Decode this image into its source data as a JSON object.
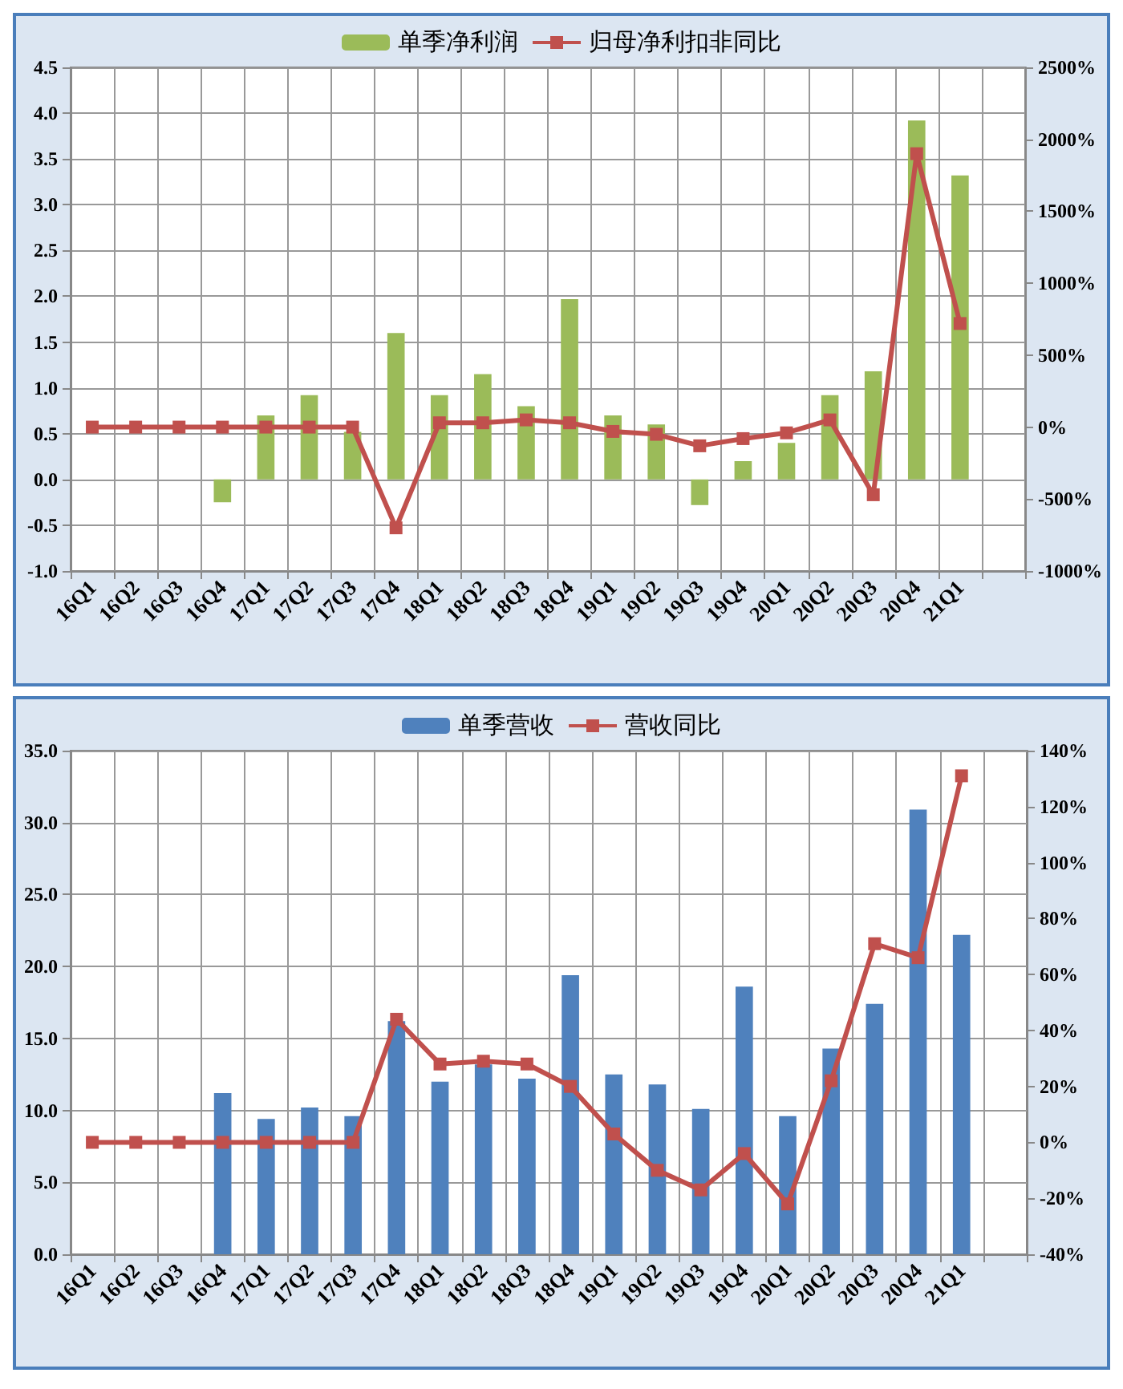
{
  "chart_data": [
    {
      "type": "bar",
      "categories": [
        "16Q1",
        "16Q2",
        "16Q3",
        "16Q4",
        "17Q1",
        "17Q2",
        "17Q3",
        "17Q4",
        "18Q1",
        "18Q2",
        "18Q3",
        "18Q4",
        "19Q1",
        "19Q2",
        "19Q3",
        "19Q4",
        "20Q1",
        "20Q2",
        "20Q3",
        "20Q4",
        "21Q1",
        null
      ],
      "series": [
        {
          "name": "单季净利润",
          "color": "#9bbb59",
          "values": [
            null,
            null,
            null,
            -0.25,
            0.7,
            0.92,
            0.52,
            1.6,
            0.92,
            1.15,
            0.8,
            1.97,
            0.7,
            0.6,
            -0.28,
            0.2,
            0.4,
            0.92,
            1.18,
            3.92,
            3.32,
            null
          ]
        },
        {
          "name": "归母净利扣非同比",
          "type": "line",
          "axis": "y2",
          "color": "#c0504d",
          "values": [
            0,
            0,
            0,
            0,
            0,
            0,
            0,
            -700,
            30,
            30,
            50,
            30,
            -30,
            -50,
            -130,
            -80,
            -40,
            50,
            -470,
            1900,
            720,
            null
          ]
        }
      ],
      "ylim": [
        -1,
        4.5
      ],
      "yticks": [
        {
          "value": -1,
          "label": "-1.0"
        },
        {
          "value": -0.5,
          "label": "-0.5"
        },
        {
          "value": 0,
          "label": "0.0"
        },
        {
          "value": 0.5,
          "label": "0.5"
        },
        {
          "value": 1,
          "label": "1.0"
        },
        {
          "value": 1.5,
          "label": "1.5"
        },
        {
          "value": 2,
          "label": "2.0"
        },
        {
          "value": 2.5,
          "label": "2.5"
        },
        {
          "value": 3,
          "label": "3.0"
        },
        {
          "value": 3.5,
          "label": "3.5"
        },
        {
          "value": 4,
          "label": "4.0"
        },
        {
          "value": 4.5,
          "label": "4.5"
        }
      ],
      "y2lim": [
        -1000,
        2500
      ],
      "y2ticks": [
        {
          "value": -1000,
          "label": "-1000%"
        },
        {
          "value": -500,
          "label": "-500%"
        },
        {
          "value": 0,
          "label": "0%"
        },
        {
          "value": 500,
          "label": "500%"
        },
        {
          "value": 1000,
          "label": "1000%"
        },
        {
          "value": 1500,
          "label": "1500%"
        },
        {
          "value": 2000,
          "label": "2000%"
        },
        {
          "value": 2500,
          "label": "2500%"
        }
      ],
      "grid": true,
      "legend": "top",
      "marker": "square"
    },
    {
      "type": "bar",
      "categories": [
        "16Q1",
        "16Q2",
        "16Q3",
        "16Q4",
        "17Q1",
        "17Q2",
        "17Q3",
        "17Q4",
        "18Q1",
        "18Q2",
        "18Q3",
        "18Q4",
        "19Q1",
        "19Q2",
        "19Q3",
        "19Q4",
        "20Q1",
        "20Q2",
        "20Q3",
        "20Q4",
        "21Q1",
        null
      ],
      "series": [
        {
          "name": "单季营收",
          "color": "#4f81bd",
          "values": [
            null,
            null,
            null,
            11.2,
            9.4,
            10.2,
            9.6,
            16.2,
            12.0,
            13.2,
            12.2,
            19.4,
            12.5,
            11.8,
            10.1,
            18.6,
            9.6,
            14.3,
            17.4,
            30.9,
            22.2,
            null
          ]
        },
        {
          "name": "营收同比",
          "type": "line",
          "axis": "y2",
          "color": "#c0504d",
          "values": [
            0,
            0,
            0,
            0,
            0,
            0,
            0,
            44,
            28,
            29,
            28,
            20,
            3,
            -10,
            -17,
            -4,
            -22,
            22,
            71,
            66,
            131,
            null
          ]
        }
      ],
      "ylim": [
        0,
        35
      ],
      "yticks": [
        {
          "value": 0,
          "label": "0.0"
        },
        {
          "value": 5,
          "label": "5.0"
        },
        {
          "value": 10,
          "label": "10.0"
        },
        {
          "value": 15,
          "label": "15.0"
        },
        {
          "value": 20,
          "label": "20.0"
        },
        {
          "value": 25,
          "label": "25.0"
        },
        {
          "value": 30,
          "label": "30.0"
        },
        {
          "value": 35,
          "label": "35.0"
        }
      ],
      "y2lim": [
        -40,
        140
      ],
      "y2ticks": [
        {
          "value": -40,
          "label": "-40%"
        },
        {
          "value": -20,
          "label": "-20%"
        },
        {
          "value": 0,
          "label": "0%"
        },
        {
          "value": 20,
          "label": "20%"
        },
        {
          "value": 40,
          "label": "40%"
        },
        {
          "value": 60,
          "label": "60%"
        },
        {
          "value": 80,
          "label": "80%"
        },
        {
          "value": 100,
          "label": "100%"
        },
        {
          "value": 120,
          "label": "120%"
        },
        {
          "value": 140,
          "label": "140%"
        }
      ],
      "grid": true,
      "legend": "top",
      "marker": "square"
    }
  ]
}
